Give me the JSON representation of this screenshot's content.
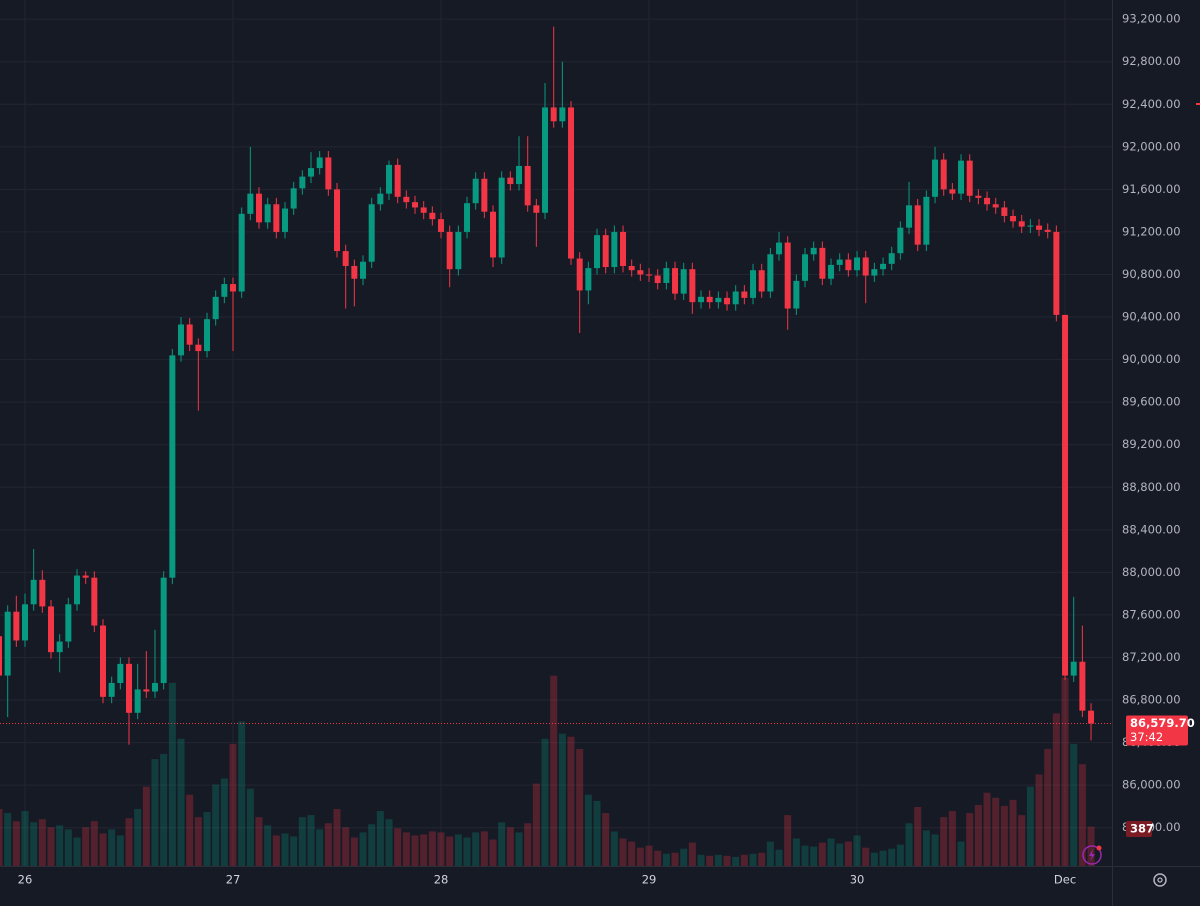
{
  "chart_data": {
    "type": "candlestick",
    "categories": [
      null,
      null,
      null,
      "26",
      null,
      null,
      null,
      null,
      null,
      null,
      null,
      null,
      null,
      null,
      null,
      null,
      null,
      null,
      null,
      null,
      null,
      null,
      null,
      null,
      null,
      null,
      null,
      "27",
      null,
      null,
      null,
      null,
      null,
      null,
      null,
      null,
      null,
      null,
      null,
      null,
      null,
      null,
      null,
      null,
      null,
      null,
      null,
      null,
      null,
      null,
      null,
      "28",
      null,
      null,
      null,
      null,
      null,
      null,
      null,
      null,
      null,
      null,
      null,
      null,
      null,
      null,
      null,
      null,
      null,
      null,
      null,
      null,
      null,
      null,
      null,
      "29",
      null,
      null,
      null,
      null,
      null,
      null,
      null,
      null,
      null,
      null,
      null,
      null,
      null,
      null,
      null,
      null,
      null,
      null,
      null,
      null,
      null,
      null,
      null,
      "30",
      null,
      null,
      null,
      null,
      null,
      null,
      null,
      null,
      null,
      null,
      null,
      null,
      null,
      null,
      null,
      null,
      null,
      null,
      null,
      null,
      null,
      null,
      null,
      "Dec",
      null,
      null,
      null
    ],
    "open": [
      87400,
      87030,
      87630,
      87360,
      87700,
      87930,
      87680,
      87250,
      87350,
      87700,
      87970,
      87950,
      87500,
      86830,
      86960,
      87140,
      86680,
      86900,
      86880,
      86960,
      87950,
      90040,
      90330,
      90140,
      90080,
      90380,
      90590,
      90710,
      90640,
      91370,
      91560,
      91290,
      91460,
      91200,
      91420,
      91610,
      91720,
      91800,
      91900,
      91600,
      91020,
      90880,
      90760,
      90920,
      91460,
      91560,
      91830,
      91530,
      91480,
      91430,
      91380,
      91320,
      91200,
      90850,
      91200,
      91470,
      91700,
      91390,
      90960,
      91710,
      91650,
      91820,
      91450,
      91380,
      92370,
      92240,
      92370,
      90950,
      90650,
      90860,
      91170,
      90870,
      91200,
      90880,
      90840,
      90800,
      90790,
      90720,
      90860,
      90620,
      90850,
      90540,
      90590,
      90540,
      90580,
      90520,
      90640,
      90580,
      90840,
      90640,
      90990,
      91100,
      90480,
      90740,
      90990,
      91050,
      90760,
      90890,
      90940,
      90840,
      90960,
      90790,
      90850,
      90900,
      91000,
      91240,
      91450,
      91080,
      91530,
      91880,
      91600,
      91560,
      91870,
      91540,
      91520,
      91460,
      91430,
      91350,
      91300,
      91250,
      91260,
      91220,
      91200,
      90420,
      87030,
      87160,
      86700
    ],
    "high": [
      87600,
      87690,
      87780,
      87800,
      88220,
      88020,
      87740,
      87420,
      87760,
      88030,
      88010,
      88010,
      87560,
      87020,
      87200,
      87200,
      87140,
      87260,
      87460,
      88010,
      90100,
      90400,
      90390,
      90200,
      90440,
      90650,
      90770,
      90770,
      91430,
      92000,
      91620,
      91520,
      91520,
      91480,
      91670,
      91780,
      91950,
      91960,
      91960,
      91660,
      91080,
      90940,
      90980,
      91520,
      91620,
      91870,
      91890,
      91590,
      91540,
      91490,
      91440,
      91380,
      91260,
      91260,
      91530,
      91760,
      91760,
      91450,
      91770,
      91770,
      92100,
      92100,
      91510,
      92600,
      93130,
      92800,
      92430,
      91010,
      90920,
      91230,
      91230,
      91260,
      91260,
      90940,
      90900,
      90860,
      90850,
      90920,
      90920,
      90910,
      90910,
      90650,
      90650,
      90640,
      90640,
      90700,
      90700,
      90900,
      90900,
      91050,
      91200,
      91160,
      90800,
      91050,
      91110,
      91110,
      90950,
      91000,
      91000,
      91020,
      91020,
      90910,
      90960,
      91060,
      91300,
      91670,
      91510,
      91590,
      92000,
      91940,
      91660,
      91930,
      91930,
      91600,
      91580,
      91520,
      91490,
      91410,
      91360,
      91320,
      91320,
      91280,
      91260,
      90420,
      87770,
      87500,
      86770
    ],
    "low": [
      86610,
      86640,
      87300,
      87300,
      87640,
      87620,
      87190,
      87060,
      87290,
      87640,
      87890,
      87440,
      86770,
      86770,
      86900,
      86380,
      86620,
      86820,
      86820,
      86900,
      87890,
      89980,
      90080,
      89520,
      90020,
      90320,
      90530,
      90080,
      90580,
      91310,
      91230,
      91230,
      91140,
      91140,
      91360,
      91550,
      91660,
      91740,
      91540,
      90960,
      90480,
      90500,
      90700,
      90860,
      91400,
      91500,
      91470,
      91420,
      91370,
      91320,
      91260,
      91140,
      90680,
      90790,
      91140,
      91410,
      91330,
      90870,
      90900,
      91590,
      91590,
      91390,
      91060,
      91320,
      92180,
      92180,
      90890,
      90250,
      90520,
      90800,
      90810,
      90810,
      90820,
      90780,
      90740,
      90730,
      90660,
      90660,
      90560,
      90560,
      90430,
      90480,
      90480,
      90480,
      90460,
      90460,
      90520,
      90520,
      90580,
      90580,
      90930,
      90280,
      90420,
      90680,
      90930,
      90700,
      90700,
      90830,
      90780,
      90780,
      90530,
      90730,
      90790,
      90840,
      90940,
      91180,
      91020,
      91020,
      91470,
      91540,
      91500,
      91500,
      91480,
      91460,
      91400,
      91370,
      91290,
      91240,
      91190,
      91190,
      91160,
      91140,
      90360,
      86990,
      86970,
      86640,
      86420
    ],
    "close": [
      87030,
      87630,
      87360,
      87700,
      87930,
      87680,
      87250,
      87350,
      87700,
      87970,
      87950,
      87500,
      86830,
      86960,
      87140,
      86680,
      86900,
      86880,
      86960,
      87950,
      90040,
      90330,
      90140,
      90080,
      90380,
      90590,
      90710,
      90640,
      91370,
      91560,
      91290,
      91460,
      91200,
      91420,
      91610,
      91720,
      91800,
      91900,
      91600,
      91020,
      90880,
      90760,
      90920,
      91460,
      91560,
      91830,
      91530,
      91480,
      91430,
      91380,
      91320,
      91200,
      90850,
      91200,
      91470,
      91700,
      91390,
      90960,
      91710,
      91650,
      91820,
      91450,
      91380,
      92370,
      92240,
      92370,
      90950,
      90650,
      90860,
      91170,
      90870,
      91200,
      90880,
      90840,
      90800,
      90790,
      90720,
      90860,
      90620,
      90850,
      90540,
      90590,
      90540,
      90580,
      90520,
      90640,
      90580,
      90840,
      90640,
      90990,
      91100,
      90480,
      90740,
      90990,
      91050,
      90760,
      90890,
      90940,
      90840,
      90960,
      90790,
      90850,
      90900,
      91000,
      91240,
      91450,
      91080,
      91530,
      91880,
      91600,
      91560,
      91870,
      91540,
      91520,
      91460,
      91430,
      91350,
      91300,
      91250,
      91260,
      91220,
      91200,
      90420,
      87030,
      87160,
      86700,
      86579.7
    ],
    "last_price_label": "86,579.70",
    "countdown": "37:42",
    "volume": [
      560,
      520,
      440,
      540,
      430,
      460,
      380,
      400,
      360,
      280,
      380,
      440,
      320,
      360,
      300,
      470,
      560,
      780,
      1050,
      1100,
      1800,
      1250,
      700,
      480,
      530,
      800,
      860,
      1200,
      1420,
      760,
      480,
      400,
      300,
      320,
      290,
      480,
      500,
      360,
      420,
      560,
      380,
      280,
      330,
      410,
      540,
      460,
      370,
      330,
      300,
      310,
      340,
      330,
      290,
      310,
      280,
      330,
      340,
      260,
      430,
      380,
      330,
      420,
      810,
      1250,
      1870,
      1300,
      1270,
      1150,
      700,
      640,
      520,
      340,
      270,
      240,
      180,
      200,
      150,
      120,
      130,
      170,
      230,
      110,
      100,
      110,
      100,
      90,
      110,
      120,
      130,
      240,
      160,
      500,
      270,
      200,
      190,
      230,
      270,
      220,
      240,
      300,
      180,
      130,
      150,
      170,
      210,
      420,
      580,
      350,
      310,
      480,
      540,
      240,
      520,
      600,
      720,
      670,
      590,
      650,
      500,
      780,
      900,
      1150,
      1500,
      1850,
      1200,
      1000,
      387
    ],
    "up_color": "#089981",
    "down_color": "#f23645",
    "ylim": [
      85240,
      93380
    ],
    "yticks": [
      {
        "value": 85600,
        "label": "85,600.00"
      },
      {
        "value": 86000,
        "label": "86,000.00"
      },
      {
        "value": 86400,
        "label": "86,400.00"
      },
      {
        "value": 86800,
        "label": "86,800.00"
      },
      {
        "value": 87200,
        "label": "87,200.00"
      },
      {
        "value": 87600,
        "label": "87,600.00"
      },
      {
        "value": 88000,
        "label": "88,000.00"
      },
      {
        "value": 88400,
        "label": "88,400.00"
      },
      {
        "value": 88800,
        "label": "88,800.00"
      },
      {
        "value": 89200,
        "label": "89,200.00"
      },
      {
        "value": 89600,
        "label": "89,600.00"
      },
      {
        "value": 90000,
        "label": "90,000.00"
      },
      {
        "value": 90400,
        "label": "90,400.00"
      },
      {
        "value": 90800,
        "label": "90,800.00"
      },
      {
        "value": 91200,
        "label": "91,200.00"
      },
      {
        "value": 91600,
        "label": "91,600.00"
      },
      {
        "value": 92000,
        "label": "92,000.00"
      },
      {
        "value": 92400,
        "label": "92,400.00"
      },
      {
        "value": 92800,
        "label": "92,800.00"
      },
      {
        "value": 93200,
        "label": "93,200.00"
      }
    ],
    "vlim": [
      0,
      3400
    ],
    "grid": true
  }
}
